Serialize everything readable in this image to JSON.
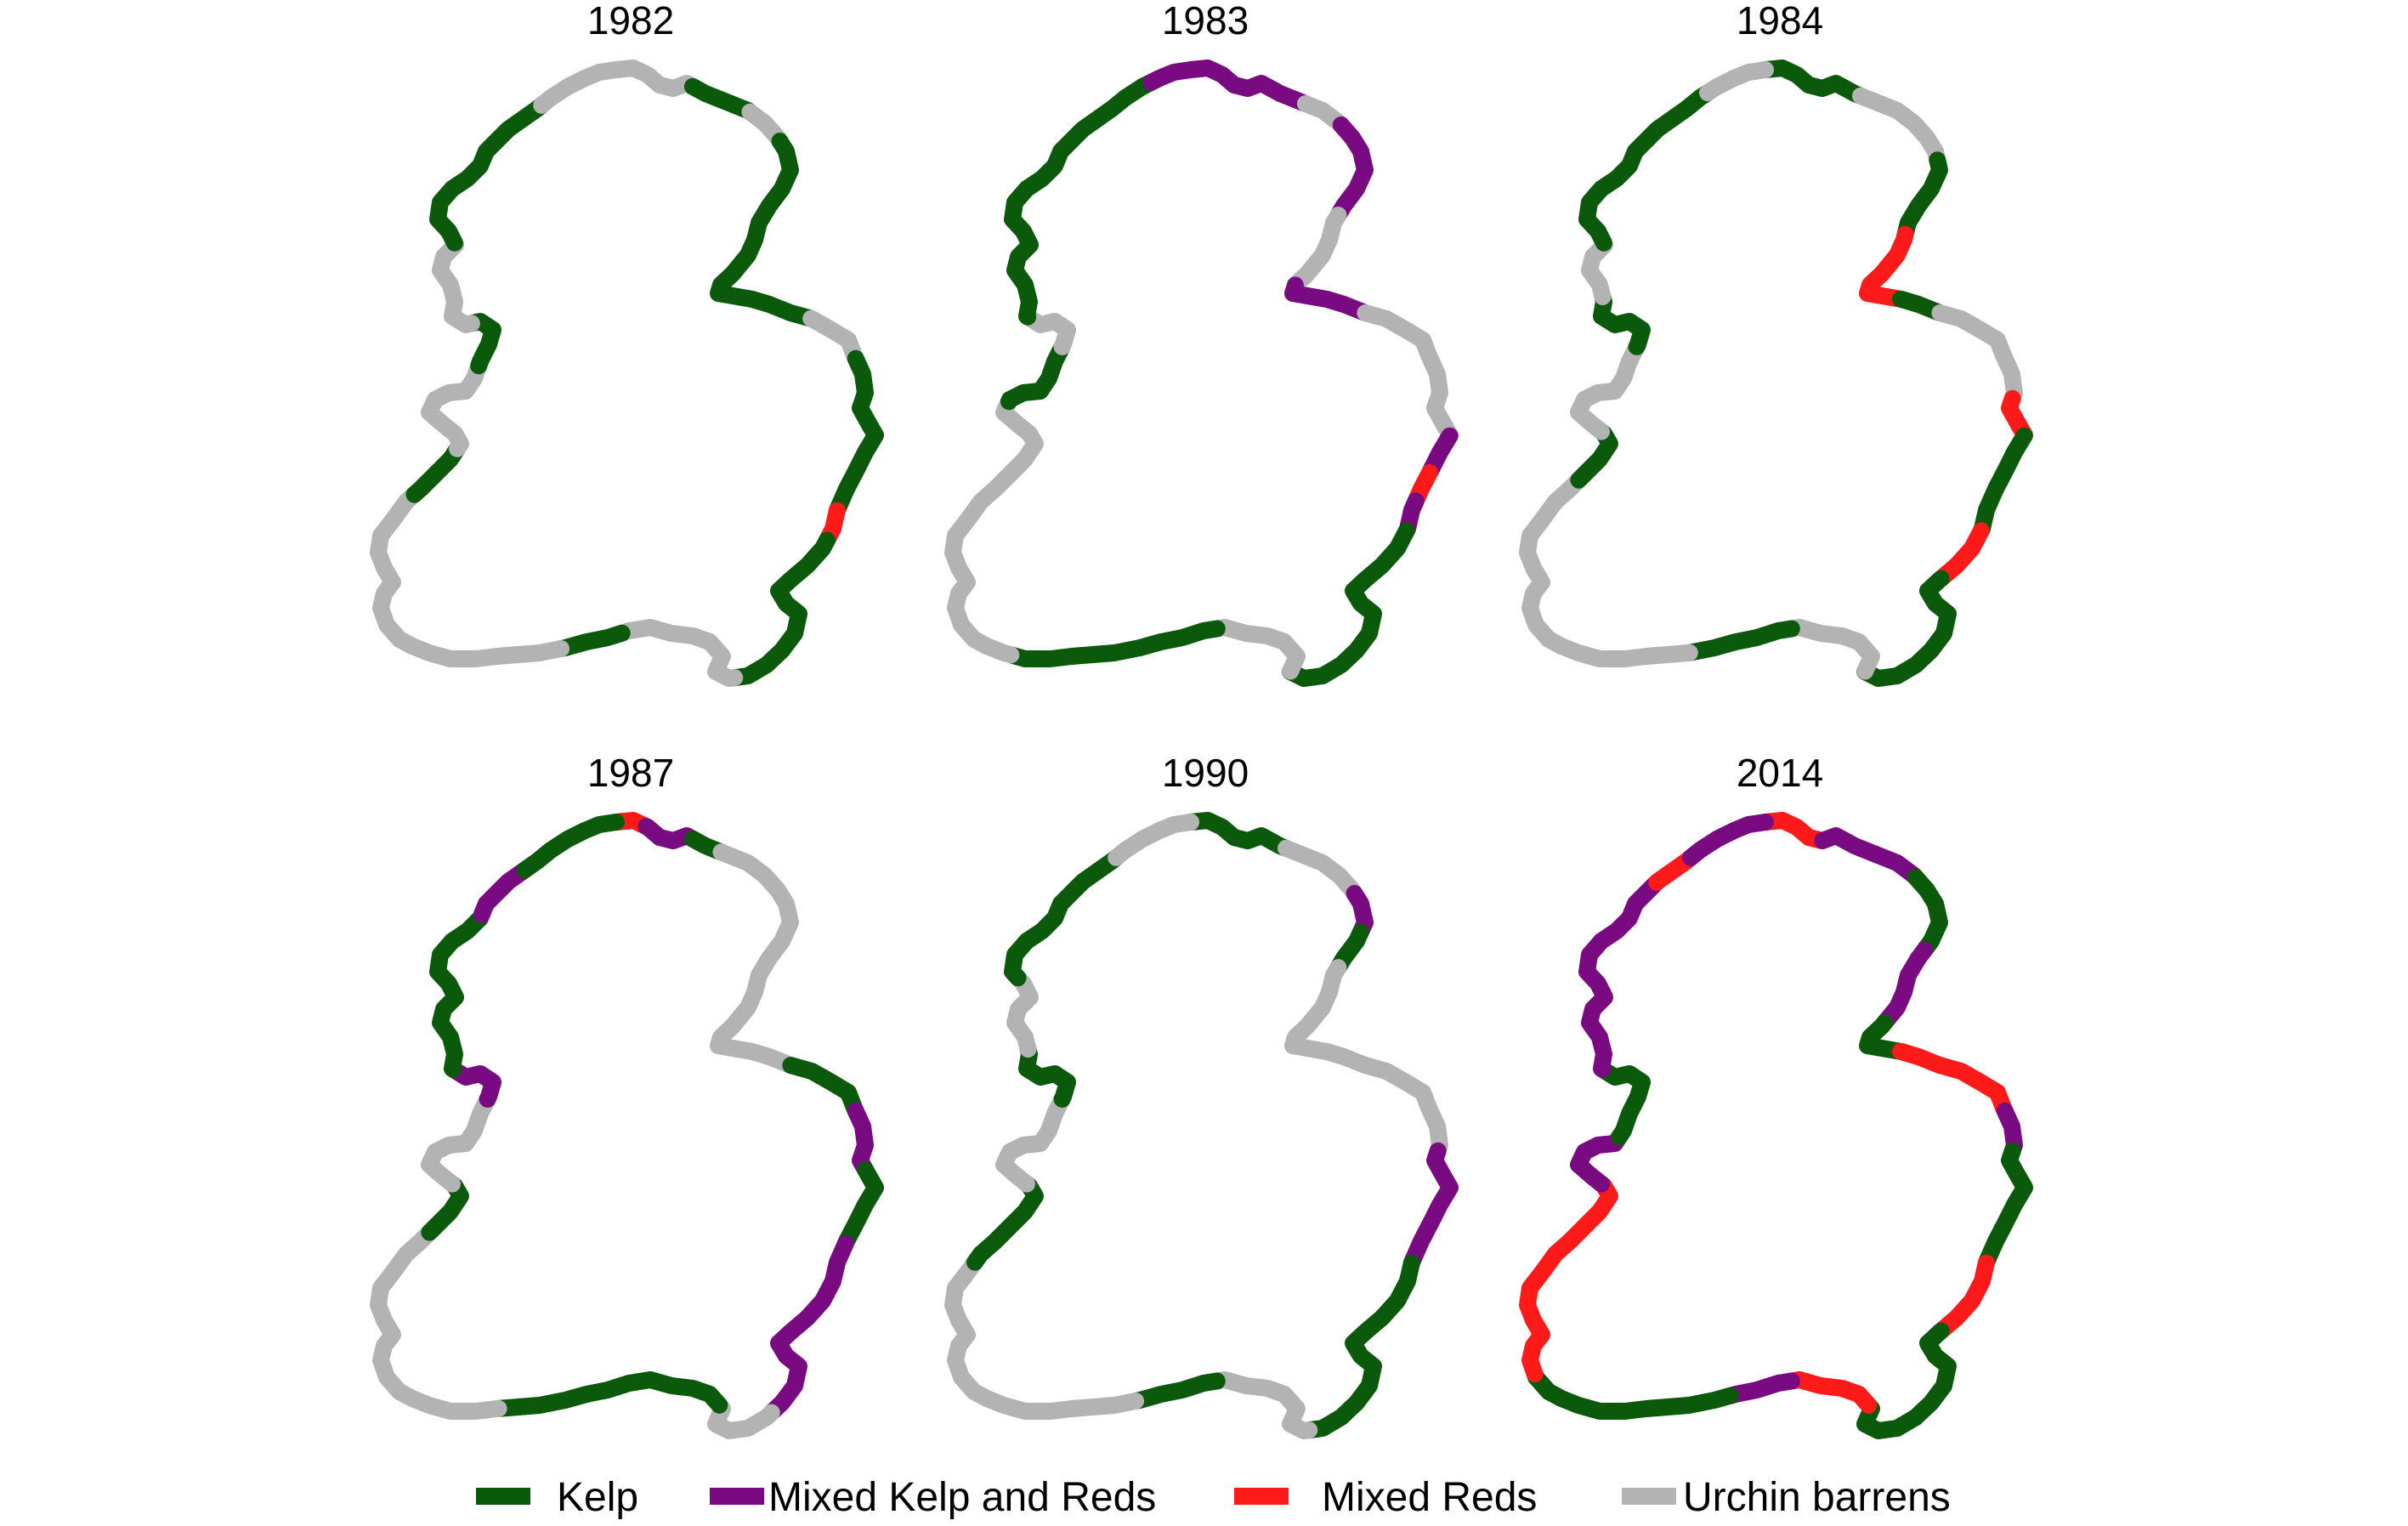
{
  "figure": {
    "panels": [
      {
        "title": "1982",
        "segments": [
          {
            "from": 0.0,
            "to": 0.04,
            "class": "Urchin barrens"
          },
          {
            "from": 0.04,
            "to": 0.07,
            "class": "Kelp"
          },
          {
            "from": 0.07,
            "to": 0.09,
            "class": "Urchin barrens"
          },
          {
            "from": 0.09,
            "to": 0.22,
            "class": "Kelp"
          },
          {
            "from": 0.22,
            "to": 0.25,
            "class": "Urchin barrens"
          },
          {
            "from": 0.25,
            "to": 0.33,
            "class": "Kelp"
          },
          {
            "from": 0.33,
            "to": 0.345,
            "class": "Mixed Reds"
          },
          {
            "from": 0.345,
            "to": 0.44,
            "class": "Kelp"
          },
          {
            "from": 0.44,
            "to": 0.51,
            "class": "Urchin barrens"
          },
          {
            "from": 0.51,
            "to": 0.54,
            "class": "Kelp"
          },
          {
            "from": 0.54,
            "to": 0.7,
            "class": "Urchin barrens"
          },
          {
            "from": 0.7,
            "to": 0.73,
            "class": "Kelp"
          },
          {
            "from": 0.73,
            "to": 0.79,
            "class": "Urchin barrens"
          },
          {
            "from": 0.79,
            "to": 0.82,
            "class": "Kelp"
          },
          {
            "from": 0.82,
            "to": 0.87,
            "class": "Urchin barrens"
          },
          {
            "from": 0.87,
            "to": 0.96,
            "class": "Kelp"
          },
          {
            "from": 0.96,
            "to": 1.0,
            "class": "Urchin barrens"
          }
        ]
      },
      {
        "title": "1983",
        "segments": [
          {
            "from": 0.0,
            "to": 0.06,
            "class": "Mixed Kelp and Reds"
          },
          {
            "from": 0.06,
            "to": 0.08,
            "class": "Urchin barrens"
          },
          {
            "from": 0.08,
            "to": 0.13,
            "class": "Mixed Kelp and Reds"
          },
          {
            "from": 0.13,
            "to": 0.17,
            "class": "Urchin barrens"
          },
          {
            "from": 0.17,
            "to": 0.21,
            "class": "Mixed Kelp and Reds"
          },
          {
            "from": 0.21,
            "to": 0.29,
            "class": "Urchin barrens"
          },
          {
            "from": 0.29,
            "to": 0.31,
            "class": "Mixed Kelp and Reds"
          },
          {
            "from": 0.31,
            "to": 0.325,
            "class": "Mixed Reds"
          },
          {
            "from": 0.325,
            "to": 0.34,
            "class": "Mixed Kelp and Reds"
          },
          {
            "from": 0.34,
            "to": 0.45,
            "class": "Kelp"
          },
          {
            "from": 0.45,
            "to": 0.5,
            "class": "Urchin barrens"
          },
          {
            "from": 0.5,
            "to": 0.6,
            "class": "Kelp"
          },
          {
            "from": 0.6,
            "to": 0.76,
            "class": "Urchin barrens"
          },
          {
            "from": 0.76,
            "to": 0.8,
            "class": "Kelp"
          },
          {
            "from": 0.8,
            "to": 0.83,
            "class": "Urchin barrens"
          },
          {
            "from": 0.83,
            "to": 0.98,
            "class": "Kelp"
          },
          {
            "from": 0.98,
            "to": 1.0,
            "class": "Mixed Kelp and Reds"
          }
        ]
      },
      {
        "title": "1984",
        "segments": [
          {
            "from": 0.0,
            "to": 0.05,
            "class": "Kelp"
          },
          {
            "from": 0.05,
            "to": 0.1,
            "class": "Urchin barrens"
          },
          {
            "from": 0.1,
            "to": 0.14,
            "class": "Kelp"
          },
          {
            "from": 0.14,
            "to": 0.19,
            "class": "Mixed Reds"
          },
          {
            "from": 0.19,
            "to": 0.21,
            "class": "Kelp"
          },
          {
            "from": 0.21,
            "to": 0.27,
            "class": "Urchin barrens"
          },
          {
            "from": 0.27,
            "to": 0.29,
            "class": "Mixed Reds"
          },
          {
            "from": 0.29,
            "to": 0.34,
            "class": "Kelp"
          },
          {
            "from": 0.34,
            "to": 0.37,
            "class": "Mixed Reds"
          },
          {
            "from": 0.37,
            "to": 0.45,
            "class": "Kelp"
          },
          {
            "from": 0.45,
            "to": 0.5,
            "class": "Urchin barrens"
          },
          {
            "from": 0.5,
            "to": 0.55,
            "class": "Kelp"
          },
          {
            "from": 0.55,
            "to": 0.71,
            "class": "Urchin barrens"
          },
          {
            "from": 0.71,
            "to": 0.74,
            "class": "Kelp"
          },
          {
            "from": 0.74,
            "to": 0.8,
            "class": "Urchin barrens"
          },
          {
            "from": 0.8,
            "to": 0.84,
            "class": "Kelp"
          },
          {
            "from": 0.84,
            "to": 0.87,
            "class": "Urchin barrens"
          },
          {
            "from": 0.87,
            "to": 0.97,
            "class": "Kelp"
          },
          {
            "from": 0.97,
            "to": 1.0,
            "class": "Urchin barrens"
          }
        ]
      },
      {
        "title": "1987",
        "segments": [
          {
            "from": 0.0,
            "to": 0.015,
            "class": "Mixed Reds"
          },
          {
            "from": 0.015,
            "to": 0.04,
            "class": "Mixed Kelp and Reds"
          },
          {
            "from": 0.04,
            "to": 0.055,
            "class": "Kelp"
          },
          {
            "from": 0.055,
            "to": 0.21,
            "class": "Urchin barrens"
          },
          {
            "from": 0.21,
            "to": 0.25,
            "class": "Kelp"
          },
          {
            "from": 0.25,
            "to": 0.28,
            "class": "Mixed Kelp and Reds"
          },
          {
            "from": 0.28,
            "to": 0.32,
            "class": "Kelp"
          },
          {
            "from": 0.32,
            "to": 0.42,
            "class": "Mixed Kelp and Reds"
          },
          {
            "from": 0.42,
            "to": 0.46,
            "class": "Urchin barrens"
          },
          {
            "from": 0.46,
            "to": 0.57,
            "class": "Kelp"
          },
          {
            "from": 0.57,
            "to": 0.71,
            "class": "Urchin barrens"
          },
          {
            "from": 0.71,
            "to": 0.74,
            "class": "Kelp"
          },
          {
            "from": 0.74,
            "to": 0.8,
            "class": "Urchin barrens"
          },
          {
            "from": 0.8,
            "to": 0.83,
            "class": "Mixed Kelp and Reds"
          },
          {
            "from": 0.83,
            "to": 0.92,
            "class": "Kelp"
          },
          {
            "from": 0.92,
            "to": 0.95,
            "class": "Mixed Kelp and Reds"
          },
          {
            "from": 0.95,
            "to": 1.0,
            "class": "Kelp"
          }
        ]
      },
      {
        "title": "1990",
        "segments": [
          {
            "from": 0.0,
            "to": 0.05,
            "class": "Kelp"
          },
          {
            "from": 0.05,
            "to": 0.09,
            "class": "Urchin barrens"
          },
          {
            "from": 0.09,
            "to": 0.11,
            "class": "Mixed Kelp and Reds"
          },
          {
            "from": 0.11,
            "to": 0.13,
            "class": "Kelp"
          },
          {
            "from": 0.13,
            "to": 0.27,
            "class": "Urchin barrens"
          },
          {
            "from": 0.27,
            "to": 0.33,
            "class": "Mixed Kelp and Reds"
          },
          {
            "from": 0.33,
            "to": 0.44,
            "class": "Kelp"
          },
          {
            "from": 0.44,
            "to": 0.5,
            "class": "Urchin barrens"
          },
          {
            "from": 0.5,
            "to": 0.54,
            "class": "Kelp"
          },
          {
            "from": 0.54,
            "to": 0.69,
            "class": "Urchin barrens"
          },
          {
            "from": 0.69,
            "to": 0.74,
            "class": "Kelp"
          },
          {
            "from": 0.74,
            "to": 0.8,
            "class": "Urchin barrens"
          },
          {
            "from": 0.8,
            "to": 0.84,
            "class": "Kelp"
          },
          {
            "from": 0.84,
            "to": 0.88,
            "class": "Urchin barrens"
          },
          {
            "from": 0.88,
            "to": 0.96,
            "class": "Kelp"
          },
          {
            "from": 0.96,
            "to": 1.0,
            "class": "Urchin barrens"
          }
        ]
      },
      {
        "title": "2014",
        "segments": [
          {
            "from": 0.0,
            "to": 0.03,
            "class": "Mixed Reds"
          },
          {
            "from": 0.03,
            "to": 0.08,
            "class": "Mixed Kelp and Reds"
          },
          {
            "from": 0.08,
            "to": 0.12,
            "class": "Kelp"
          },
          {
            "from": 0.12,
            "to": 0.16,
            "class": "Mixed Kelp and Reds"
          },
          {
            "from": 0.16,
            "to": 0.19,
            "class": "Kelp"
          },
          {
            "from": 0.19,
            "to": 0.25,
            "class": "Mixed Reds"
          },
          {
            "from": 0.25,
            "to": 0.27,
            "class": "Mixed Kelp and Reds"
          },
          {
            "from": 0.27,
            "to": 0.33,
            "class": "Kelp"
          },
          {
            "from": 0.33,
            "to": 0.37,
            "class": "Mixed Reds"
          },
          {
            "from": 0.37,
            "to": 0.46,
            "class": "Kelp"
          },
          {
            "from": 0.46,
            "to": 0.5,
            "class": "Mixed Reds"
          },
          {
            "from": 0.5,
            "to": 0.53,
            "class": "Mixed Kelp and Reds"
          },
          {
            "from": 0.53,
            "to": 0.63,
            "class": "Kelp"
          },
          {
            "from": 0.63,
            "to": 0.74,
            "class": "Mixed Reds"
          },
          {
            "from": 0.74,
            "to": 0.78,
            "class": "Mixed Kelp and Reds"
          },
          {
            "from": 0.78,
            "to": 0.83,
            "class": "Kelp"
          },
          {
            "from": 0.83,
            "to": 0.94,
            "class": "Mixed Kelp and Reds"
          },
          {
            "from": 0.94,
            "to": 0.96,
            "class": "Mixed Reds"
          },
          {
            "from": 0.96,
            "to": 1.0,
            "class": "Mixed Kelp and Reds"
          }
        ]
      }
    ],
    "legend": [
      {
        "label": "Kelp",
        "color": "#0b5a0b"
      },
      {
        "label": "Mixed Kelp and Reds",
        "color": "#7a0a82"
      },
      {
        "label": "Mixed Reds",
        "color": "#ff1a1a"
      },
      {
        "label": "Urchin barrens",
        "color": "#b3b3b3"
      }
    ]
  }
}
